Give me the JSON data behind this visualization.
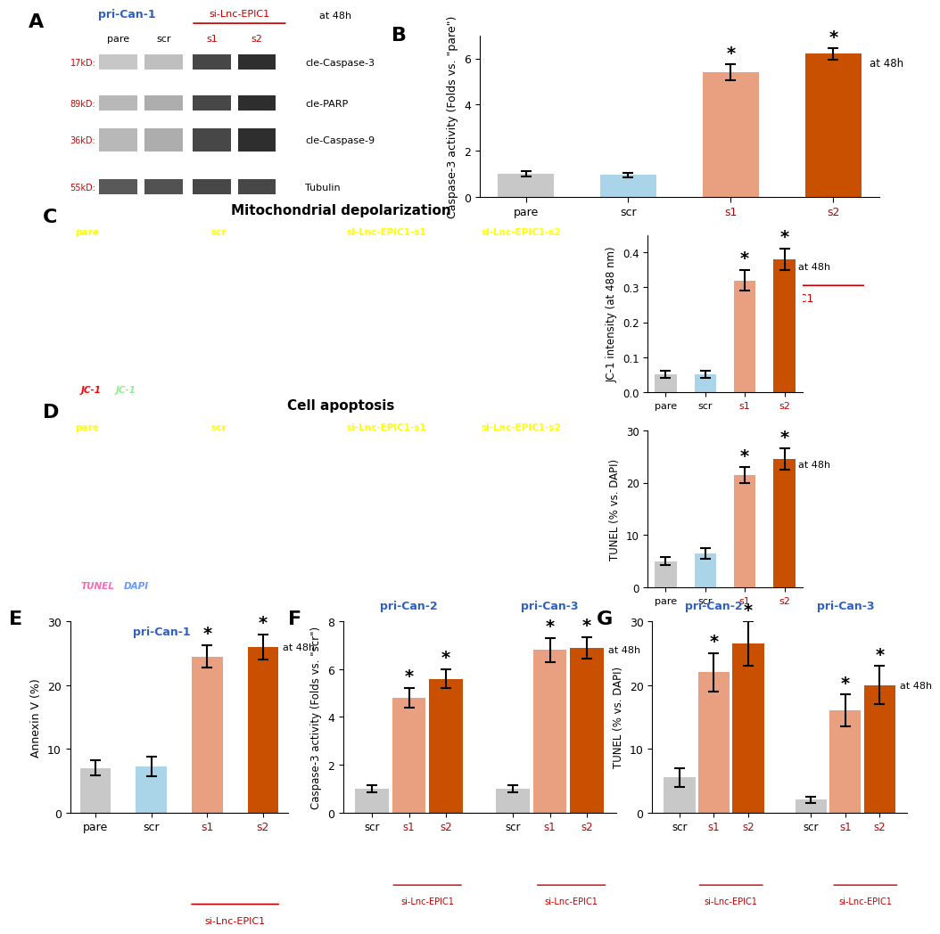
{
  "panel_B": {
    "categories": [
      "pare",
      "scr",
      "s1",
      "s2"
    ],
    "values": [
      1.0,
      0.95,
      5.4,
      6.2
    ],
    "errors": [
      0.12,
      0.1,
      0.35,
      0.25
    ],
    "colors": [
      "#c8c8c8",
      "#aad4e8",
      "#e8a080",
      "#c85000"
    ],
    "ylabel": "Caspase-3 activity (Folds vs. \"pare\")",
    "ylim": [
      0,
      7
    ],
    "yticks": [
      0,
      2,
      4,
      6
    ],
    "note": "at 48h",
    "stars": [
      false,
      false,
      true,
      true
    ]
  },
  "panel_C_bar": {
    "categories": [
      "pare",
      "scr",
      "s1",
      "s2"
    ],
    "values": [
      0.05,
      0.05,
      0.32,
      0.38
    ],
    "errors": [
      0.01,
      0.01,
      0.03,
      0.03
    ],
    "colors": [
      "#c8c8c8",
      "#aad4e8",
      "#e8a080",
      "#c85000"
    ],
    "ylabel": "JC-1 intensity (at 488 nm)",
    "ylim": [
      0,
      0.45
    ],
    "yticks": [
      0.0,
      0.1,
      0.2,
      0.3,
      0.4
    ],
    "note": "at 48h",
    "stars": [
      false,
      false,
      true,
      true
    ]
  },
  "panel_D_bar": {
    "categories": [
      "pare",
      "scr",
      "s1",
      "s2"
    ],
    "values": [
      5.0,
      6.5,
      21.5,
      24.5
    ],
    "errors": [
      0.8,
      1.0,
      1.5,
      2.0
    ],
    "colors": [
      "#c8c8c8",
      "#aad4e8",
      "#e8a080",
      "#c85000"
    ],
    "ylabel": "TUNEL (% vs. DAPI)",
    "ylim": [
      0,
      30
    ],
    "yticks": [
      0,
      10,
      20,
      30
    ],
    "note": "at 48h",
    "stars": [
      false,
      false,
      true,
      true
    ]
  },
  "panel_E": {
    "categories": [
      "pare",
      "scr",
      "s1",
      "s2"
    ],
    "values": [
      7.0,
      7.2,
      24.5,
      26.0
    ],
    "errors": [
      1.2,
      1.5,
      1.8,
      2.0
    ],
    "colors": [
      "#c8c8c8",
      "#aad4e8",
      "#e8a080",
      "#c85000"
    ],
    "ylabel": "Annexin V (%)",
    "ylim": [
      0,
      30
    ],
    "yticks": [
      0,
      10,
      20,
      30
    ],
    "note": "at 48h",
    "stars": [
      false,
      false,
      true,
      true
    ],
    "title": "pri-Can-1",
    "title_color": "#3060c0"
  },
  "panel_F": {
    "groups": [
      {
        "label": "pri-Can-2",
        "categories": [
          "scr",
          "s1",
          "s2"
        ],
        "values": [
          1.0,
          4.8,
          5.6
        ],
        "errors": [
          0.15,
          0.4,
          0.4
        ],
        "colors": [
          "#c8c8c8",
          "#e8a080",
          "#c85000"
        ],
        "stars": [
          false,
          true,
          true
        ]
      },
      {
        "label": "pri-Can-3",
        "categories": [
          "scr",
          "s1",
          "s2"
        ],
        "values": [
          1.0,
          6.8,
          6.9
        ],
        "errors": [
          0.15,
          0.5,
          0.45
        ],
        "colors": [
          "#c8c8c8",
          "#e8a080",
          "#c85000"
        ],
        "stars": [
          false,
          true,
          true
        ]
      }
    ],
    "ylabel": "Caspase-3 activity (Folds vs. \"scr\")",
    "ylim": [
      0,
      8
    ],
    "yticks": [
      0,
      2,
      4,
      6,
      8
    ],
    "note": "at 48h",
    "title_color": "#3060c0"
  },
  "panel_G": {
    "groups": [
      {
        "label": "pri-Can-2",
        "categories": [
          "scr",
          "s1",
          "s2"
        ],
        "values": [
          5.5,
          22.0,
          26.5
        ],
        "errors": [
          1.5,
          3.0,
          3.5
        ],
        "colors": [
          "#c8c8c8",
          "#e8a080",
          "#c85000"
        ],
        "stars": [
          false,
          true,
          true
        ]
      },
      {
        "label": "pri-Can-3",
        "categories": [
          "scr",
          "s1",
          "s2"
        ],
        "values": [
          2.0,
          16.0,
          20.0
        ],
        "errors": [
          0.5,
          2.5,
          3.0
        ],
        "colors": [
          "#c8c8c8",
          "#e8a080",
          "#c85000"
        ],
        "stars": [
          false,
          true,
          true
        ]
      }
    ],
    "ylabel": "TUNEL (% vs. DAPI)",
    "ylim": [
      0,
      30
    ],
    "yticks": [
      0,
      10,
      20,
      30
    ],
    "note": "at 48h",
    "title_color": "#3060c0"
  },
  "label_color_blue": "#3060c0",
  "label_color_red": "#c00000",
  "bar_width": 0.55,
  "background_color": "#ffffff"
}
